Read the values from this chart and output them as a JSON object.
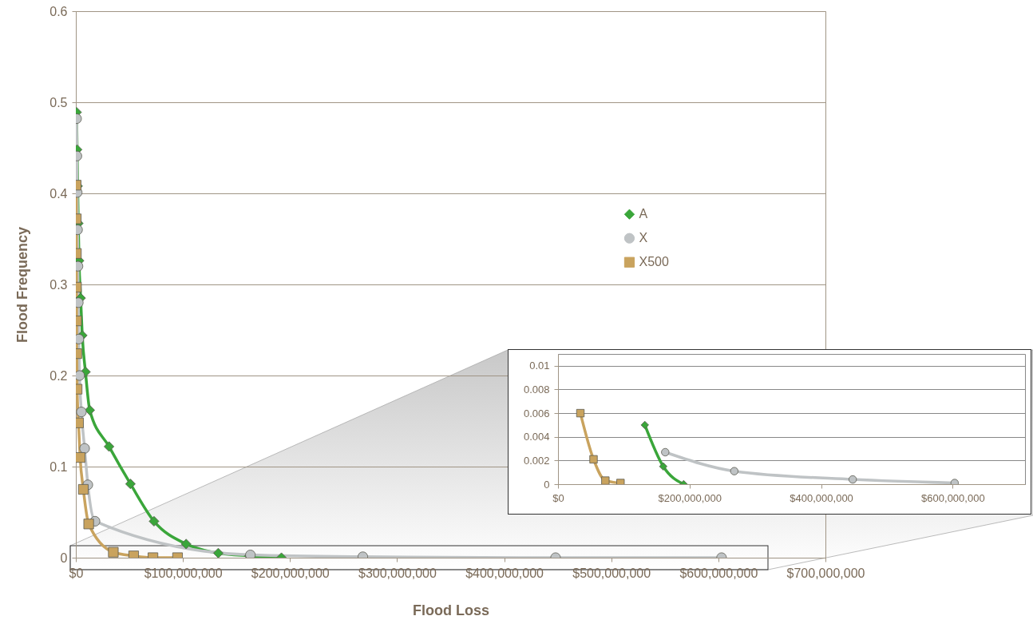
{
  "chart_data": [
    {
      "type": "line",
      "xlabel": "Flood Loss",
      "ylabel": "Flood Frequency",
      "xlim": [
        0,
        700000000
      ],
      "ylim": [
        0,
        0.6
      ],
      "xticks": [
        {
          "value": 0,
          "label": "$0"
        },
        {
          "value": 100000000,
          "label": "$100,000,000"
        },
        {
          "value": 200000000,
          "label": "$200,000,000"
        },
        {
          "value": 300000000,
          "label": "$300,000,000"
        },
        {
          "value": 400000000,
          "label": "$400,000,000"
        },
        {
          "value": 500000000,
          "label": "$500,000,000"
        },
        {
          "value": 600000000,
          "label": "$600,000,000"
        },
        {
          "value": 700000000,
          "label": "$700,000,000"
        }
      ],
      "yticks": [
        0,
        0.1,
        0.2,
        0.3,
        0.4,
        0.5,
        0.6
      ],
      "grid": "y",
      "legend": "right",
      "series": [
        {
          "name": "A",
          "color": "#3aa63a",
          "marker": "diamond",
          "x": [
            700000,
            1200000,
            1700000,
            2300000,
            3000000,
            4500000,
            6000000,
            9000000,
            13000000,
            31000000,
            51000000,
            73000000,
            103000000,
            133000000,
            162000000,
            192000000
          ],
          "values": [
            0.489,
            0.448,
            0.408,
            0.367,
            0.326,
            0.285,
            0.244,
            0.204,
            0.162,
            0.122,
            0.081,
            0.04,
            0.015,
            0.005,
            0.002,
            0
          ]
        },
        {
          "name": "X",
          "color": "#bfc3c5",
          "marker": "circle",
          "x": [
            700000,
            1000000,
            1300000,
            1600000,
            2000000,
            2300000,
            2800000,
            3500000,
            5200000,
            8200000,
            11200000,
            17900000,
            163000000,
            268000000,
            448000000,
            603000000
          ],
          "values": [
            0.482,
            0.441,
            0.401,
            0.36,
            0.32,
            0.28,
            0.24,
            0.2,
            0.16,
            0.12,
            0.08,
            0.04,
            0.003,
            0.001,
            0,
            0
          ]
        },
        {
          "name": "X500",
          "color": "#c9a35e",
          "marker": "square",
          "x": [
            300000,
            400000,
            500000,
            600000,
            700000,
            900000,
            1200000,
            2500000,
            4000000,
            7000000,
            12000000,
            35000000,
            54000000,
            72000000,
            95000000
          ],
          "values": [
            0.409,
            0.372,
            0.334,
            0.297,
            0.26,
            0.224,
            0.185,
            0.148,
            0.11,
            0.075,
            0.037,
            0.006,
            0.002,
            0,
            0
          ]
        }
      ]
    },
    {
      "type": "line",
      "xlim": [
        0,
        710000000
      ],
      "ylim": [
        0,
        0.011
      ],
      "xticks": [
        {
          "value": 0,
          "label": "$0"
        },
        {
          "value": 200000000,
          "label": "$200,000,000"
        },
        {
          "value": 400000000,
          "label": "$400,000,000"
        },
        {
          "value": 600000000,
          "label": "$600,000,000"
        }
      ],
      "yticks": [
        0,
        0.002,
        0.004,
        0.006,
        0.008,
        0.01
      ],
      "grid": "y",
      "series": [
        {
          "color": "#3aa63a",
          "marker": "diamond",
          "x": [
            132000000,
            160000000,
            191000000
          ],
          "values": [
            0.005,
            0.0015,
            0
          ]
        },
        {
          "color": "#bfc3c5",
          "marker": "circle",
          "x": [
            163000000,
            268000000,
            448000000,
            603000000
          ],
          "values": [
            0.0027,
            0.0011,
            0.0004,
            0.0001
          ]
        },
        {
          "color": "#c9a35e",
          "marker": "square",
          "x": [
            34000000,
            54000000,
            72000000,
            95000000
          ],
          "values": [
            0.006,
            0.0021,
            0.0003,
            0.0001
          ]
        }
      ]
    }
  ]
}
